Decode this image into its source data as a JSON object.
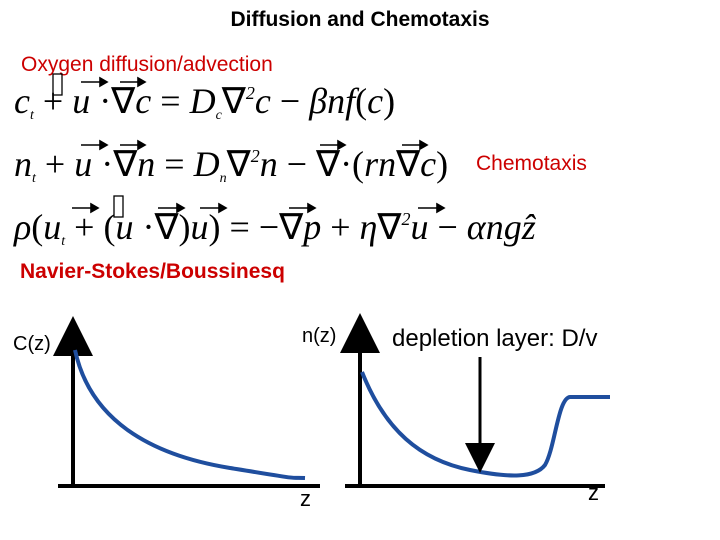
{
  "title": "Diffusion and Chemotaxis",
  "labels": {
    "oxygen": "Oxygen diffusion/advection",
    "chemotaxis": "Chemotaxis",
    "navier_stokes": "Navier-Stokes/Boussinesq"
  },
  "equations": {
    "oxygen": "c_t + u·∇c = D_c∇²c − βnf(c)",
    "cells": "n_t + u·∇n = D_n∇²n − ∇·(rn∇c)",
    "fluid": "ρ(u_t + (u·∇)u) = −∇p + η∇²u − αngẑ"
  },
  "plots": {
    "left": {
      "y_label": "C(z)",
      "x_label": "z"
    },
    "right": {
      "y_label": "n(z)",
      "x_label": "z",
      "annotation": "depletion layer: D/v"
    }
  },
  "colors": {
    "accent": "#cc0000",
    "ink": "#000000",
    "curve": "#1f4e9e"
  }
}
